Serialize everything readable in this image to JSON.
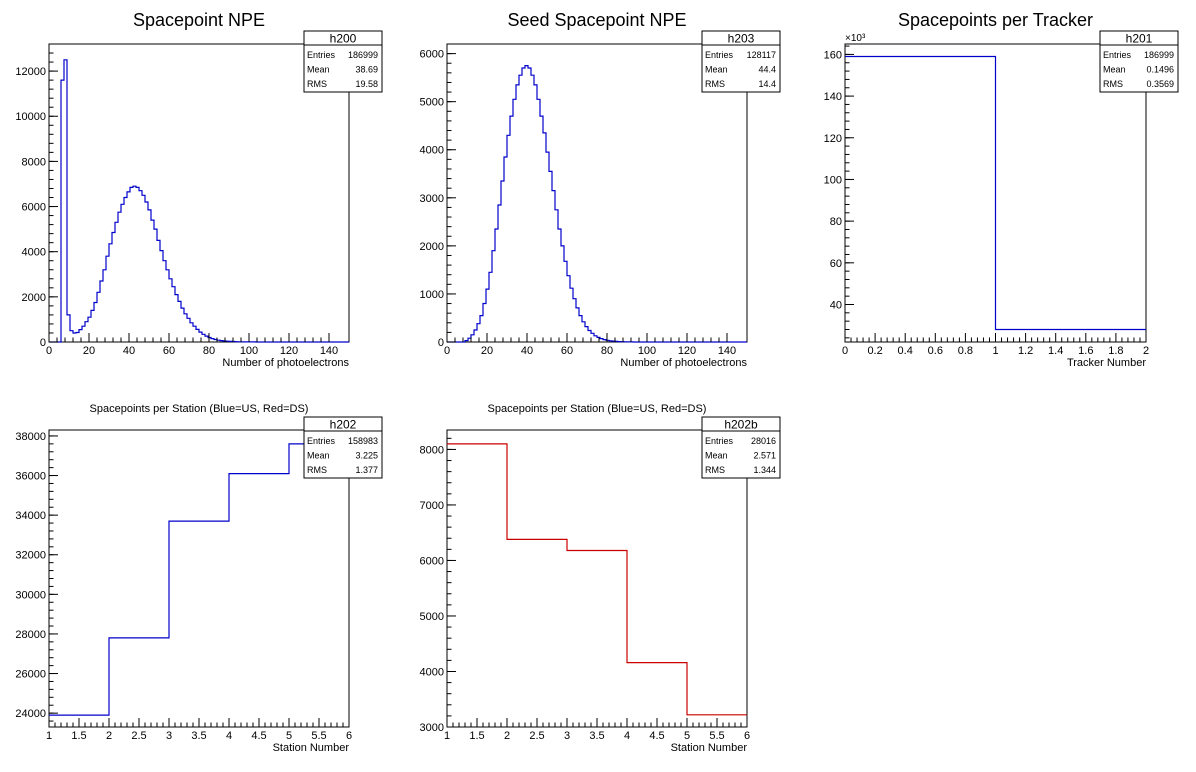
{
  "chart_data": [
    {
      "type": "histogram",
      "title": "Spacepoint NPE",
      "title_size": "large",
      "xlabel": "Number of photoelectrons",
      "ylabel": "",
      "xlim": [
        0,
        150
      ],
      "ylim": [
        0,
        13200
      ],
      "xticks": [
        0,
        20,
        40,
        60,
        80,
        100,
        120,
        140
      ],
      "xtick_labels": [
        "0",
        "20",
        "40",
        "60",
        "80",
        "100",
        "120",
        "140"
      ],
      "yticks": [
        0,
        2000,
        4000,
        6000,
        8000,
        10000,
        12000
      ],
      "ytick_labels": [
        "0",
        "2000",
        "4000",
        "6000",
        "8000",
        "10000",
        "12000"
      ],
      "exponent_label": "",
      "color": "#0000cc",
      "stats": {
        "name": "h200",
        "entries_label": "Entries",
        "entries": "186999",
        "mean_label": "Mean",
        "mean": "38.69",
        "rms_label": "RMS",
        "rms": "19.58"
      },
      "bin_start": 0,
      "bin_width": 1.5,
      "values": [
        0,
        0,
        0,
        0,
        11600,
        12500,
        1200,
        500,
        400,
        420,
        550,
        700,
        900,
        1100,
        1400,
        1750,
        2200,
        2700,
        3200,
        3800,
        4350,
        4850,
        5300,
        5750,
        6100,
        6400,
        6650,
        6850,
        6900,
        6850,
        6700,
        6500,
        6200,
        5850,
        5400,
        5000,
        4500,
        4050,
        3600,
        3200,
        2800,
        2450,
        2100,
        1800,
        1500,
        1250,
        1050,
        850,
        700,
        560,
        440,
        340,
        260,
        200,
        150,
        110,
        80,
        60,
        45,
        35,
        25,
        20,
        15,
        10,
        8,
        6,
        5,
        4,
        3,
        2,
        2,
        1,
        1,
        0,
        0,
        0,
        0,
        0,
        0,
        0,
        0,
        0,
        0,
        0,
        0,
        0,
        0,
        0,
        0,
        0,
        0,
        0,
        0,
        0,
        0,
        0,
        0,
        0,
        0,
        0
      ]
    },
    {
      "type": "histogram",
      "title": "Seed Spacepoint NPE",
      "title_size": "large",
      "xlabel": "Number of photoelectrons",
      "ylabel": "",
      "xlim": [
        0,
        150
      ],
      "ylim": [
        0,
        6200
      ],
      "xticks": [
        0,
        20,
        40,
        60,
        80,
        100,
        120,
        140
      ],
      "xtick_labels": [
        "0",
        "20",
        "40",
        "60",
        "80",
        "100",
        "120",
        "140"
      ],
      "yticks": [
        0,
        1000,
        2000,
        3000,
        4000,
        5000,
        6000
      ],
      "ytick_labels": [
        "0",
        "1000",
        "2000",
        "3000",
        "4000",
        "5000",
        "6000"
      ],
      "exponent_label": "",
      "color": "#0000cc",
      "stats": {
        "name": "h203",
        "entries_label": "Entries",
        "entries": "128117",
        "mean_label": "Mean",
        "mean": "44.4",
        "rms_label": "RMS",
        "rms": "14.4"
      },
      "bin_start": 0,
      "bin_width": 1.5,
      "values": [
        0,
        0,
        0,
        0,
        0,
        0,
        30,
        80,
        150,
        250,
        380,
        550,
        800,
        1100,
        1450,
        1900,
        2350,
        2850,
        3350,
        3850,
        4300,
        4700,
        5050,
        5350,
        5550,
        5700,
        5750,
        5700,
        5550,
        5350,
        5050,
        4700,
        4350,
        3950,
        3550,
        3150,
        2750,
        2350,
        2000,
        1680,
        1380,
        1120,
        900,
        710,
        550,
        420,
        320,
        240,
        180,
        130,
        95,
        70,
        50,
        35,
        25,
        18,
        12,
        8,
        6,
        4,
        3,
        2,
        1,
        1,
        0,
        0,
        0,
        0,
        0,
        0,
        0,
        0,
        0,
        0,
        0,
        0,
        0,
        0,
        0,
        0,
        0,
        0,
        0,
        0,
        0,
        0,
        0,
        0,
        0,
        0,
        0,
        0,
        0,
        0,
        0,
        0,
        0,
        0,
        0,
        0
      ]
    },
    {
      "type": "histogram",
      "title": "Spacepoints per Tracker",
      "title_size": "large",
      "xlabel": "Tracker Number",
      "ylabel": "",
      "xlim": [
        0,
        2
      ],
      "ylim": [
        22,
        165
      ],
      "xticks": [
        0,
        0.2,
        0.4,
        0.6,
        0.8,
        1,
        1.2,
        1.4,
        1.6,
        1.8,
        2
      ],
      "xtick_labels": [
        "0",
        "0.2",
        "0.4",
        "0.6",
        "0.8",
        "1",
        "1.2",
        "1.4",
        "1.6",
        "1.8",
        "2"
      ],
      "yticks": [
        40,
        60,
        80,
        100,
        120,
        140,
        160
      ],
      "ytick_labels": [
        "40",
        "60",
        "80",
        "100",
        "120",
        "140",
        "160"
      ],
      "exponent_label": "×10³",
      "color": "#0000cc",
      "stats": {
        "name": "h201",
        "entries_label": "Entries",
        "entries": "186999",
        "mean_label": "Mean",
        "mean": "0.1496",
        "rms_label": "RMS",
        "rms": "0.3569"
      },
      "bin_start": 0,
      "bin_width": 1,
      "values": [
        158.98,
        28.02
      ]
    },
    {
      "type": "histogram",
      "title": "Spacepoints per Station (Blue=US, Red=DS)",
      "title_size": "small",
      "xlabel": "Station Number",
      "ylabel": "",
      "xlim": [
        1,
        6
      ],
      "ylim": [
        23300,
        38300
      ],
      "xticks": [
        1,
        1.5,
        2,
        2.5,
        3,
        3.5,
        4,
        4.5,
        5,
        5.5,
        6
      ],
      "xtick_labels": [
        "1",
        "1.5",
        "2",
        "2.5",
        "3",
        "3.5",
        "4",
        "4.5",
        "5",
        "5.5",
        "6"
      ],
      "yticks": [
        24000,
        26000,
        28000,
        30000,
        32000,
        34000,
        36000,
        38000
      ],
      "ytick_labels": [
        "24000",
        "26000",
        "28000",
        "30000",
        "32000",
        "34000",
        "36000",
        "38000"
      ],
      "exponent_label": "",
      "color": "#0000cc",
      "stats": {
        "name": "h202",
        "entries_label": "Entries",
        "entries": "158983",
        "mean_label": "Mean",
        "mean": "3.225",
        "rms_label": "RMS",
        "rms": "1.377"
      },
      "bin_start": 1,
      "bin_width": 1,
      "values": [
        23900,
        27800,
        33700,
        36100,
        37600
      ]
    },
    {
      "type": "histogram",
      "title": "Spacepoints per Station (Blue=US, Red=DS)",
      "title_size": "small",
      "xlabel": "Station Number",
      "ylabel": "",
      "xlim": [
        1,
        6
      ],
      "ylim": [
        3000,
        8350
      ],
      "xticks": [
        1,
        1.5,
        2,
        2.5,
        3,
        3.5,
        4,
        4.5,
        5,
        5.5,
        6
      ],
      "xtick_labels": [
        "1",
        "1.5",
        "2",
        "2.5",
        "3",
        "3.5",
        "4",
        "4.5",
        "5",
        "5.5",
        "6"
      ],
      "yticks": [
        3000,
        4000,
        5000,
        6000,
        7000,
        8000
      ],
      "ytick_labels": [
        "3000",
        "4000",
        "5000",
        "6000",
        "7000",
        "8000"
      ],
      "exponent_label": "",
      "color": "#cc0000",
      "stats": {
        "name": "h202b",
        "entries_label": "Entries",
        "entries": "28016",
        "mean_label": "Mean",
        "mean": "2.571",
        "rms_label": "RMS",
        "rms": "1.344"
      },
      "bin_start": 1,
      "bin_width": 1,
      "values": [
        8100,
        6380,
        6180,
        4160,
        3220
      ]
    }
  ]
}
